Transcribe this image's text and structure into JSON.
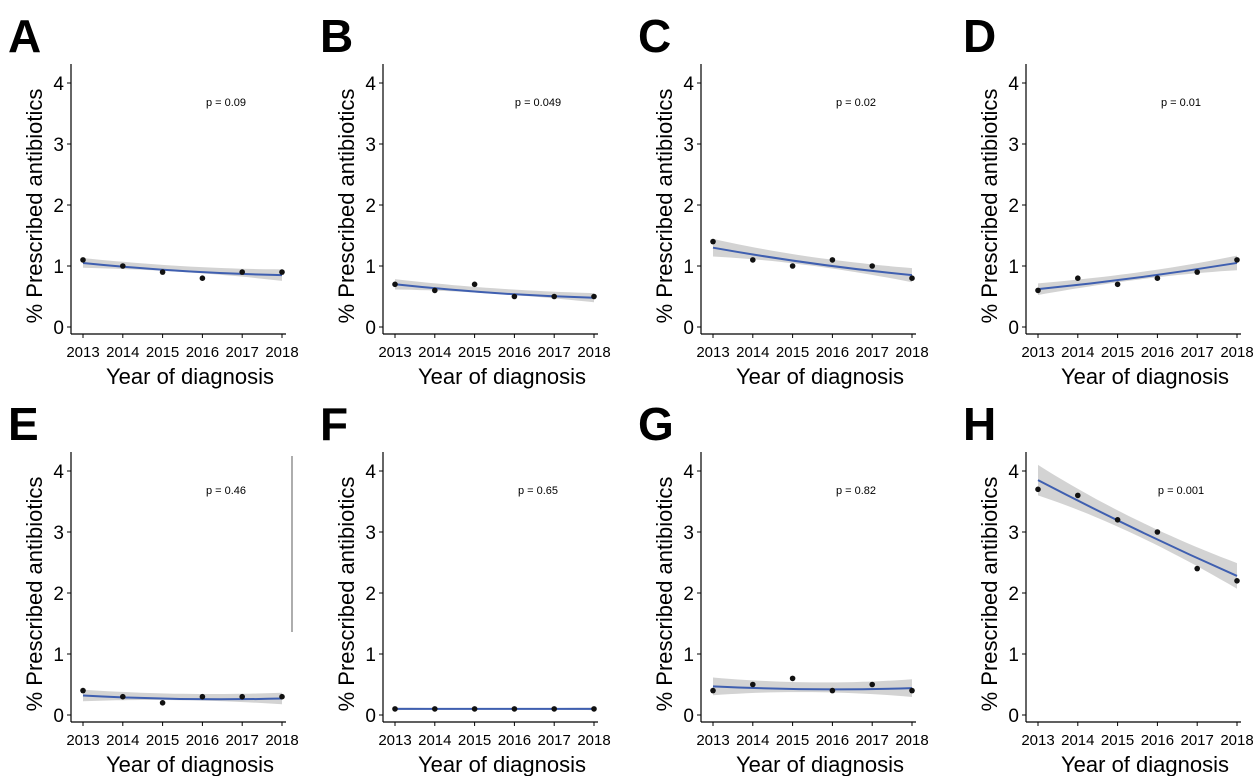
{
  "chart_data": [
    {
      "type": "line",
      "panel": "A",
      "x": [
        2013,
        2014,
        2015,
        2016,
        2017,
        2018
      ],
      "points": [
        1.1,
        1.0,
        0.9,
        0.8,
        0.9,
        0.9
      ],
      "fit": {
        "from": 1.05,
        "to": 0.85,
        "ci_lower_from": 0.97,
        "ci_upper_from": 1.13,
        "ci_lower_to": 0.76,
        "ci_upper_to": 0.95
      },
      "annotation": "p = 0.09",
      "ylabel": "% Prescribed antibiotics",
      "xlabel": "Year of diagnosis",
      "ylim": [
        0,
        4
      ],
      "yticks": [
        0,
        1,
        2,
        3,
        4
      ]
    },
    {
      "type": "line",
      "panel": "B",
      "x": [
        2013,
        2014,
        2015,
        2016,
        2017,
        2018
      ],
      "points": [
        0.7,
        0.6,
        0.7,
        0.5,
        0.5,
        0.5
      ],
      "fit": {
        "from": 0.7,
        "to": 0.48,
        "ci_lower_from": 0.62,
        "ci_upper_from": 0.79,
        "ci_lower_to": 0.41,
        "ci_upper_to": 0.56
      },
      "annotation": "p = 0.049",
      "ylabel": "% Prescribed antibiotics",
      "xlabel": "Year of diagnosis",
      "ylim": [
        0,
        4
      ],
      "yticks": [
        0,
        1,
        2,
        3,
        4
      ]
    },
    {
      "type": "line",
      "panel": "C",
      "x": [
        2013,
        2014,
        2015,
        2016,
        2017,
        2018
      ],
      "points": [
        1.4,
        1.1,
        1.0,
        1.1,
        1.0,
        0.8
      ],
      "fit": {
        "from": 1.3,
        "to": 0.85,
        "ci_lower_from": 1.16,
        "ci_upper_from": 1.45,
        "ci_lower_to": 0.74,
        "ci_upper_to": 0.97
      },
      "annotation": "p = 0.02",
      "ylabel": "% Prescribed antibiotics",
      "xlabel": "Year of diagnosis",
      "ylim": [
        0,
        4
      ],
      "yticks": [
        0,
        1,
        2,
        3,
        4
      ]
    },
    {
      "type": "line",
      "panel": "D",
      "x": [
        2013,
        2014,
        2015,
        2016,
        2017,
        2018
      ],
      "points": [
        0.6,
        0.8,
        0.7,
        0.8,
        0.9,
        1.1
      ],
      "fit": {
        "from": 0.62,
        "to": 1.05,
        "ci_lower_from": 0.53,
        "ci_upper_from": 0.72,
        "ci_lower_to": 0.93,
        "ci_upper_to": 1.17
      },
      "annotation": "p = 0.01",
      "ylabel": "% Prescribed antibiotics",
      "xlabel": "Year of diagnosis",
      "ylim": [
        0,
        4
      ],
      "yticks": [
        0,
        1,
        2,
        3,
        4
      ]
    },
    {
      "type": "line",
      "panel": "E",
      "x": [
        2013,
        2014,
        2015,
        2016,
        2017,
        2018
      ],
      "points": [
        0.4,
        0.3,
        0.2,
        0.3,
        0.3,
        0.3
      ],
      "fit": {
        "from": 0.32,
        "to": 0.27,
        "ci_lower_from": 0.23,
        "ci_upper_from": 0.42,
        "ci_lower_to": 0.18,
        "ci_upper_to": 0.37
      },
      "annotation": "p = 0.46",
      "ylabel": "% Prescribed antibiotics",
      "xlabel": "Year of diagnosis",
      "ylim": [
        0,
        4
      ],
      "yticks": [
        0,
        1,
        2,
        3,
        4
      ]
    },
    {
      "type": "line",
      "panel": "F",
      "x": [
        2013,
        2014,
        2015,
        2016,
        2017,
        2018
      ],
      "points": [
        0.1,
        0.1,
        0.1,
        0.1,
        0.1,
        0.1
      ],
      "fit": {
        "from": 0.1,
        "to": 0.1,
        "ci_lower_from": 0.08,
        "ci_upper_from": 0.12,
        "ci_lower_to": 0.08,
        "ci_upper_to": 0.12
      },
      "annotation": "p = 0.65",
      "ylabel": "% Prescribed antibiotics",
      "xlabel": "Year of diagnosis",
      "ylim": [
        0,
        4
      ],
      "yticks": [
        0,
        1,
        2,
        3,
        4
      ]
    },
    {
      "type": "line",
      "panel": "G",
      "x": [
        2013,
        2014,
        2015,
        2016,
        2017,
        2018
      ],
      "points": [
        0.4,
        0.5,
        0.6,
        0.4,
        0.5,
        0.4
      ],
      "fit": {
        "from": 0.47,
        "to": 0.44,
        "ci_lower_from": 0.33,
        "ci_upper_from": 0.62,
        "ci_lower_to": 0.3,
        "ci_upper_to": 0.59
      },
      "annotation": "p = 0.82",
      "ylabel": "% Prescribed antibiotics",
      "xlabel": "Year of diagnosis",
      "ylim": [
        0,
        4
      ],
      "yticks": [
        0,
        1,
        2,
        3,
        4
      ]
    },
    {
      "type": "line",
      "panel": "H",
      "x": [
        2013,
        2014,
        2015,
        2016,
        2017,
        2018
      ],
      "points": [
        3.7,
        3.6,
        3.2,
        3.0,
        2.4,
        2.2
      ],
      "fit": {
        "from": 3.85,
        "to": 2.28,
        "ci_lower_from": 3.6,
        "ci_upper_from": 4.1,
        "ci_lower_to": 2.08,
        "ci_upper_to": 2.5
      },
      "annotation": "p = 0.001",
      "ylabel": "% Prescribed antibiotics",
      "xlabel": "Year of diagnosis",
      "ylim": [
        0,
        4
      ],
      "yticks": [
        0,
        1,
        2,
        3,
        4
      ]
    }
  ],
  "colors": {
    "fit_line": "#3f5fb0",
    "ci_band": "#d3d3d3",
    "points": "#111111",
    "axis": "#000000"
  }
}
